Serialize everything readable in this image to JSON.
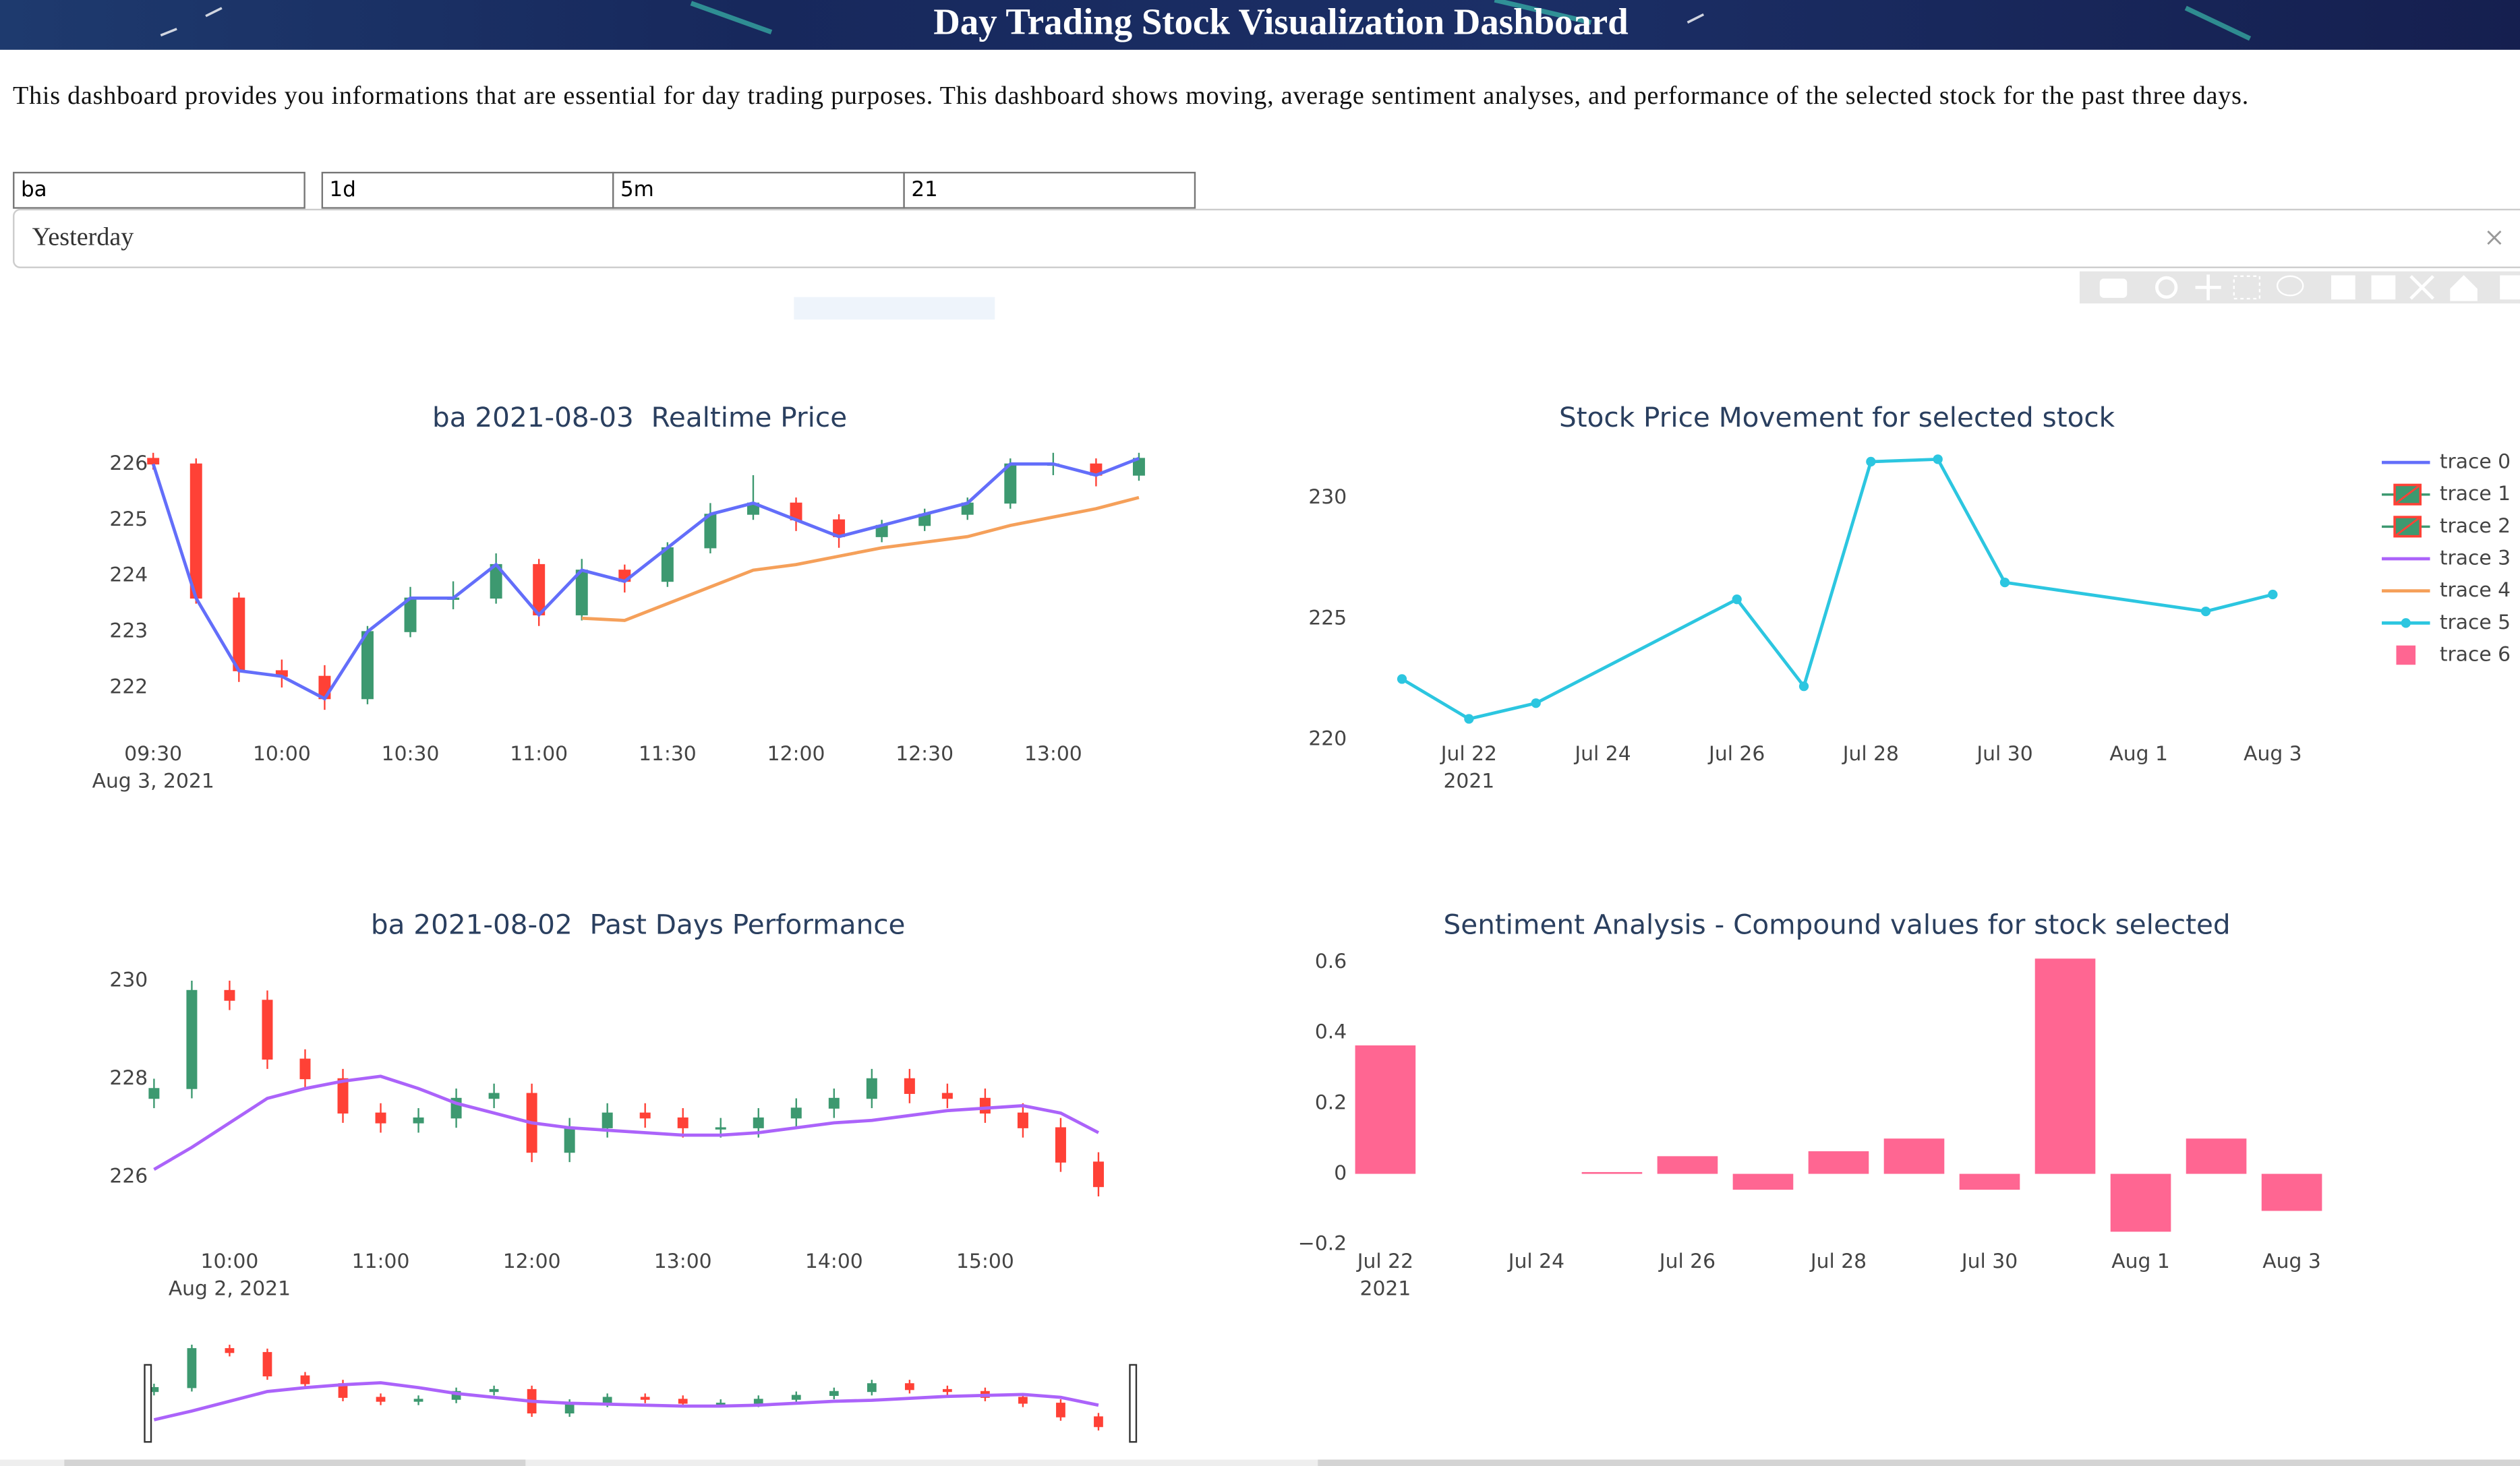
{
  "header": {
    "title": "Day Trading Stock Visualization Dashboard",
    "description": "This dashboard provides you informations that are essential for day trading purposes. This dashboard shows moving, average sentiment analyses, and performance of the selected stock for the past three days."
  },
  "controls": {
    "inputs": [
      "ba",
      "1d",
      "5m",
      "21"
    ],
    "dropdown": "Yesterday"
  },
  "legend": [
    {
      "name": "trace 0",
      "symbol": "line",
      "color": "#636efa"
    },
    {
      "name": "trace 1",
      "symbol": "candlestick",
      "colors": [
        "#3d9970",
        "#ff4136"
      ]
    },
    {
      "name": "trace 2",
      "symbol": "candlestick",
      "colors": [
        "#3d9970",
        "#ff4136"
      ]
    },
    {
      "name": "trace 3",
      "symbol": "line",
      "color": "#ab63fa"
    },
    {
      "name": "trace 4",
      "symbol": "line",
      "color": "#f5a05a"
    },
    {
      "name": "trace 5",
      "symbol": "line-marker",
      "color": "#2cc6e0"
    },
    {
      "name": "trace 6",
      "symbol": "bar",
      "color": "#ff6692"
    }
  ],
  "chart_data": [
    {
      "type": "candlestick",
      "title": "ba 2021-08-03  Realtime Price",
      "x": [
        "09:30",
        "09:40",
        "09:50",
        "10:00",
        "10:10",
        "10:20",
        "10:30",
        "10:40",
        "10:50",
        "11:00",
        "11:10",
        "11:20",
        "11:30",
        "11:40",
        "11:50",
        "12:00",
        "12:10",
        "12:20",
        "12:30",
        "12:40",
        "12:50",
        "13:00",
        "13:10",
        "13:20"
      ],
      "open": [
        226.1,
        226.0,
        223.6,
        222.3,
        222.2,
        221.8,
        223.0,
        223.6,
        223.6,
        224.2,
        223.3,
        224.1,
        223.9,
        224.5,
        225.1,
        225.3,
        225.0,
        224.7,
        224.9,
        225.1,
        225.3,
        226.0,
        226.0,
        225.8
      ],
      "high": [
        226.2,
        226.1,
        223.7,
        222.5,
        222.4,
        223.1,
        223.8,
        223.9,
        224.4,
        224.3,
        224.3,
        224.2,
        224.6,
        225.3,
        225.8,
        225.4,
        225.1,
        225.0,
        225.2,
        225.4,
        226.1,
        226.2,
        226.1,
        226.2
      ],
      "low": [
        225.9,
        223.5,
        222.1,
        222.0,
        221.6,
        221.7,
        222.9,
        223.4,
        223.5,
        223.1,
        223.2,
        223.7,
        223.8,
        224.4,
        225.0,
        224.8,
        224.5,
        224.6,
        224.8,
        225.0,
        225.2,
        225.8,
        225.6,
        225.7
      ],
      "close": [
        226.0,
        223.6,
        222.3,
        222.2,
        221.8,
        223.0,
        223.6,
        223.6,
        224.2,
        223.3,
        224.1,
        223.9,
        224.5,
        225.1,
        225.3,
        225.0,
        224.7,
        224.9,
        225.1,
        225.3,
        226.0,
        226.0,
        225.8,
        226.1
      ],
      "increasing_color": "#3d9970",
      "decreasing_color": "#ff4136",
      "series": [
        {
          "color": "#636efa",
          "values": [
            226.0,
            223.6,
            222.3,
            222.2,
            221.8,
            223.0,
            223.6,
            223.6,
            224.2,
            223.3,
            224.1,
            223.9,
            224.5,
            225.1,
            225.3,
            225.0,
            224.7,
            224.9,
            225.1,
            225.3,
            226.0,
            226.0,
            225.8,
            226.1
          ]
        },
        {
          "color": "#f5a05a",
          "values": [
            null,
            null,
            null,
            null,
            null,
            null,
            null,
            null,
            null,
            null,
            223.24,
            223.2,
            223.5,
            223.8,
            224.1,
            224.2,
            224.35,
            224.5,
            224.6,
            224.7,
            224.9,
            225.05,
            225.2,
            225.4
          ]
        }
      ],
      "xlim": [
        "09:28",
        "13:22"
      ],
      "xticks": [
        "09:30",
        "10:00",
        "10:30",
        "11:00",
        "11:30",
        "12:00",
        "12:30",
        "13:00"
      ],
      "x_sublabel": "Aug 3, 2021",
      "ylim": [
        221.2,
        226.2
      ],
      "yticks": [
        222,
        223,
        224,
        225,
        226
      ],
      "grid": false
    },
    {
      "type": "line",
      "title": "Stock Price Movement for selected stock",
      "x": [
        "2021-07-21",
        "2021-07-22",
        "2021-07-23",
        "2021-07-26",
        "2021-07-27",
        "2021-07-28",
        "2021-07-29",
        "2021-07-30",
        "2021-08-02",
        "2021-08-03"
      ],
      "series": [
        {
          "color": "#2cc6e0",
          "values": [
            222.5,
            220.85,
            221.5,
            225.8,
            222.2,
            231.5,
            231.6,
            226.5,
            225.3,
            226.0
          ]
        }
      ],
      "xlim": [
        "2021-07-20T12:00",
        "2021-08-03T12:00"
      ],
      "xticks": [
        {
          "value": "2021-07-22",
          "label": "Jul 22"
        },
        {
          "value": "2021-07-24",
          "label": "Jul 24"
        },
        {
          "value": "2021-07-26",
          "label": "Jul 26"
        },
        {
          "value": "2021-07-28",
          "label": "Jul 28"
        },
        {
          "value": "2021-07-30",
          "label": "Jul 30"
        },
        {
          "value": "2021-08-01",
          "label": "Aug 1"
        },
        {
          "value": "2021-08-03",
          "label": "Aug 3"
        }
      ],
      "x_sublabel": "2021",
      "ylim": [
        219.5,
        232
      ],
      "yticks": [
        220,
        225,
        230
      ],
      "grid": false
    },
    {
      "type": "candlestick",
      "title": "ba 2021-08-02  Past Days Performance",
      "x": [
        "09:30",
        "09:45",
        "10:00",
        "10:15",
        "10:30",
        "10:45",
        "11:00",
        "11:15",
        "11:30",
        "11:45",
        "12:00",
        "12:15",
        "12:30",
        "12:45",
        "13:00",
        "13:15",
        "13:30",
        "13:45",
        "14:00",
        "14:15",
        "14:30",
        "14:45",
        "15:00",
        "15:15",
        "15:30",
        "15:45"
      ],
      "open": [
        227.6,
        227.8,
        229.8,
        229.6,
        228.4,
        228.0,
        227.3,
        227.1,
        227.2,
        227.6,
        227.7,
        226.5,
        227.0,
        227.3,
        227.2,
        227.0,
        227.0,
        227.2,
        227.4,
        227.6,
        228.0,
        227.7,
        227.6,
        227.3,
        227.0,
        226.3
      ],
      "high": [
        228.0,
        230.0,
        230.0,
        229.8,
        228.6,
        228.2,
        227.5,
        227.4,
        227.8,
        227.9,
        227.9,
        227.2,
        227.5,
        227.5,
        227.4,
        227.2,
        227.4,
        227.6,
        227.8,
        228.2,
        228.2,
        227.9,
        227.8,
        227.5,
        227.2,
        226.5
      ],
      "low": [
        227.4,
        227.6,
        229.4,
        228.2,
        227.8,
        227.1,
        226.9,
        226.9,
        227.0,
        227.4,
        226.3,
        226.3,
        226.8,
        227.0,
        226.8,
        226.8,
        226.8,
        227.0,
        227.2,
        227.4,
        227.5,
        227.4,
        227.1,
        226.8,
        226.1,
        225.6
      ],
      "close": [
        227.8,
        229.8,
        229.6,
        228.4,
        228.0,
        227.3,
        227.1,
        227.2,
        227.6,
        227.7,
        226.5,
        227.0,
        227.3,
        227.2,
        227.0,
        227.0,
        227.2,
        227.4,
        227.6,
        228.0,
        227.7,
        227.6,
        227.3,
        227.0,
        226.3,
        225.8
      ],
      "increasing_color": "#3d9970",
      "decreasing_color": "#ff4136",
      "series": [
        {
          "color": "#ab63fa",
          "values": [
            226.15,
            226.6,
            227.1,
            227.6,
            227.8,
            227.95,
            228.05,
            227.8,
            227.5,
            227.3,
            227.1,
            227.0,
            226.95,
            226.9,
            226.85,
            226.85,
            226.9,
            227.0,
            227.1,
            227.15,
            227.25,
            227.35,
            227.4,
            227.45,
            227.3,
            226.9
          ]
        }
      ],
      "xlim": [
        "09:25",
        "16:00"
      ],
      "xticks": [
        "10:00",
        "11:00",
        "12:00",
        "13:00",
        "14:00",
        "15:00"
      ],
      "x_sublabel": "Aug 2, 2021",
      "ylim": [
        224.85,
        230.45
      ],
      "yticks": [
        226,
        228,
        230
      ],
      "grid": false,
      "rangeslider": true
    },
    {
      "type": "bar",
      "title": "Sentiment Analysis - Compound values for stock selected",
      "x": [
        "2021-07-22",
        "2021-07-25",
        "2021-07-26",
        "2021-07-27",
        "2021-07-28",
        "2021-07-29",
        "2021-07-30",
        "2021-07-31",
        "2021-08-01",
        "2021-08-02",
        "2021-08-03"
      ],
      "values": [
        0.364,
        0.005,
        0.05,
        -0.045,
        0.064,
        0.1,
        -0.045,
        0.61,
        -0.164,
        0.1,
        -0.105
      ],
      "color": "#ff6692",
      "xlim": [
        "2021-07-21T12:00",
        "2021-08-03T12:00"
      ],
      "xticks": [
        {
          "value": "2021-07-22",
          "label": "Jul 22"
        },
        {
          "value": "2021-07-24",
          "label": "Jul 24"
        },
        {
          "value": "2021-07-26",
          "label": "Jul 26"
        },
        {
          "value": "2021-07-28",
          "label": "Jul 28"
        },
        {
          "value": "2021-07-30",
          "label": "Jul 30"
        },
        {
          "value": "2021-08-01",
          "label": "Aug 1"
        },
        {
          "value": "2021-08-03",
          "label": "Aug 3"
        }
      ],
      "x_sublabel": "2021",
      "ylim": [
        -0.2,
        0.61
      ],
      "yticks": [
        0.6,
        0.4,
        0.2,
        0,
        {
          "value": -0.2,
          "label": "−0.2"
        }
      ],
      "grid": false
    }
  ]
}
